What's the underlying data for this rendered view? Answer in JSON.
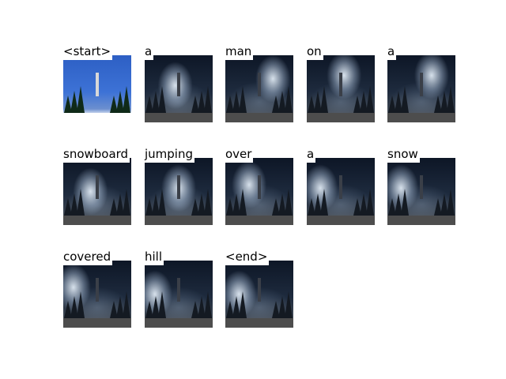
{
  "words": [
    "<start>",
    "a",
    "man",
    "on",
    "a",
    "snowboard",
    "jumping",
    "over",
    "a",
    "snow",
    "covered",
    "hill",
    "<end>"
  ],
  "colors": {
    "background": "#ffffff",
    "night_sky": "#0d1626",
    "attention": "#e1ebf5",
    "day_sky": "#2d5fc4"
  }
}
